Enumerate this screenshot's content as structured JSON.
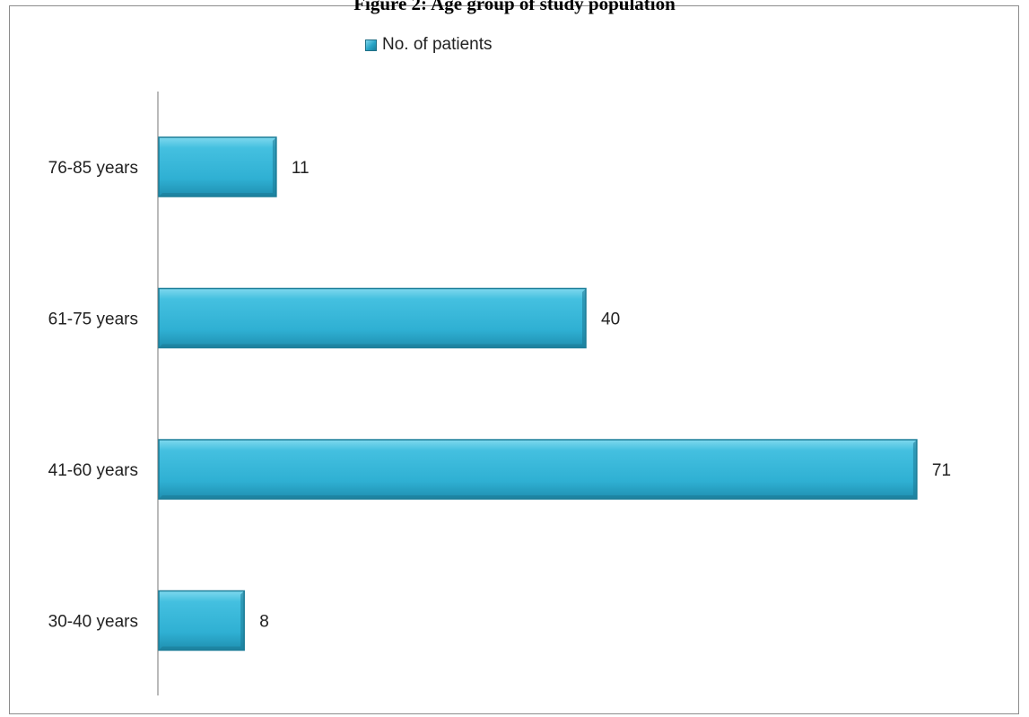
{
  "chart_data": {
    "type": "bar",
    "orientation": "horizontal",
    "title": "Figure 2: Age group of study population",
    "categories": [
      "30-40 years",
      "41-60 years",
      "61-75 years",
      "76-85 years"
    ],
    "series": [
      {
        "name": "No. of patients",
        "values": [
          8,
          71,
          40,
          11
        ]
      }
    ],
    "data_labels": true,
    "legend_position": "top",
    "grid": false,
    "bar_color": "#2fb3d6",
    "bar_edge_color": "#1d7f99"
  }
}
